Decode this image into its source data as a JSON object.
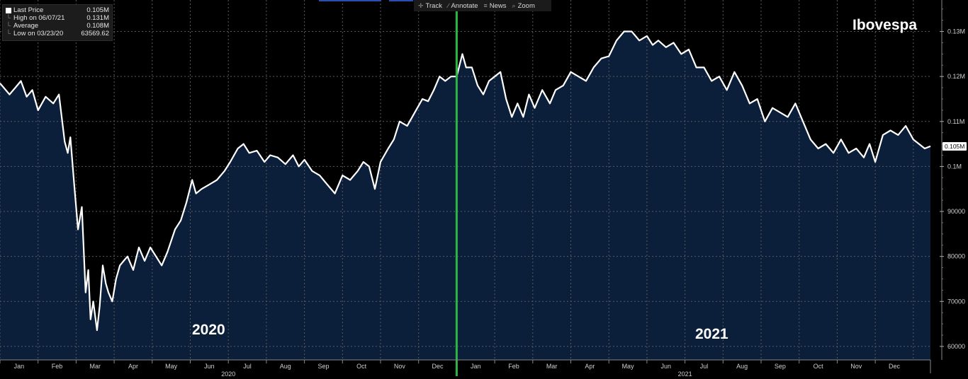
{
  "legend": {
    "rows": [
      {
        "label": "Last Price",
        "value": "0.105M",
        "marker": "swatch"
      },
      {
        "label": "High on 06/07/21",
        "value": "0.131M",
        "marker": "tree"
      },
      {
        "label": "Average",
        "value": "0.108M",
        "marker": "tree"
      },
      {
        "label": "Low on 03/23/20",
        "value": "63569.62",
        "marker": "tree"
      }
    ]
  },
  "toolbar": {
    "items": [
      {
        "label": "Track",
        "icon": "crosshair-icon"
      },
      {
        "label": "Annotate",
        "icon": "pencil-icon"
      },
      {
        "label": "News",
        "icon": "news-icon"
      },
      {
        "label": "Zoom",
        "icon": "magnifier-icon"
      }
    ]
  },
  "price_tag": "0.105M",
  "colors": {
    "background": "#000000",
    "area_fill": "#0b1f3a",
    "line": "#ffffff",
    "divider": "#2bb543",
    "grid": "#5a5a5a"
  },
  "chart_data": {
    "type": "area",
    "title": "Ibovespa",
    "annotations": [
      "2020",
      "2021"
    ],
    "x_unit": "month (0 = start of Jan 2020)",
    "xlim": [
      0,
      24.45
    ],
    "ylim": [
      57000,
      137000
    ],
    "y_ticks": [
      {
        "value": 60000,
        "label": "60000"
      },
      {
        "value": 70000,
        "label": "70000"
      },
      {
        "value": 80000,
        "label": "80000"
      },
      {
        "value": 90000,
        "label": "90000"
      },
      {
        "value": 100000,
        "label": "0.1M"
      },
      {
        "value": 110000,
        "label": "0.11M"
      },
      {
        "value": 120000,
        "label": "0.12M"
      },
      {
        "value": 130000,
        "label": "0.13M"
      }
    ],
    "x_ticks": [
      "Jan",
      "Feb",
      "Mar",
      "Apr",
      "May",
      "Jun",
      "Jul",
      "Aug",
      "Sep",
      "Oct",
      "Nov",
      "Dec",
      "Jan",
      "Feb",
      "Mar",
      "Apr",
      "May",
      "Jun",
      "Jul",
      "Aug",
      "Sep",
      "Oct",
      "Nov",
      "Dec"
    ],
    "year_labels": [
      "2020",
      "2021"
    ],
    "divider_x": 12.0,
    "grid": true,
    "series": [
      {
        "x": [
          0.0,
          0.25,
          0.4,
          0.55,
          0.7,
          0.85,
          1.0,
          1.2,
          1.4,
          1.55,
          1.7,
          1.78,
          1.85,
          1.95,
          2.05,
          2.15,
          2.25,
          2.32,
          2.38,
          2.45,
          2.55,
          2.62,
          2.7,
          2.78,
          2.85,
          2.95,
          3.05,
          3.15,
          3.25,
          3.35,
          3.5,
          3.65,
          3.8,
          3.95,
          4.1,
          4.25,
          4.4,
          4.6,
          4.75,
          4.9,
          5.05,
          5.15,
          5.3,
          5.5,
          5.7,
          5.9,
          6.05,
          6.25,
          6.4,
          6.55,
          6.75,
          6.95,
          7.1,
          7.3,
          7.5,
          7.7,
          7.85,
          8.0,
          8.2,
          8.4,
          8.6,
          8.8,
          9.0,
          9.2,
          9.4,
          9.55,
          9.7,
          9.85,
          10.0,
          10.2,
          10.35,
          10.5,
          10.7,
          10.9,
          11.1,
          11.25,
          11.4,
          11.55,
          11.7,
          11.85,
          12.0,
          12.15,
          12.25,
          12.4,
          12.55,
          12.7,
          12.85,
          13.0,
          13.15,
          13.3,
          13.45,
          13.6,
          13.75,
          13.9,
          14.05,
          14.25,
          14.45,
          14.6,
          14.8,
          15.0,
          15.2,
          15.4,
          15.6,
          15.8,
          16.0,
          16.2,
          16.4,
          16.6,
          16.8,
          17.0,
          17.15,
          17.3,
          17.5,
          17.7,
          17.9,
          18.1,
          18.3,
          18.5,
          18.7,
          18.9,
          19.1,
          19.3,
          19.5,
          19.7,
          19.9,
          20.1,
          20.3,
          20.5,
          20.7,
          20.9,
          21.1,
          21.3,
          21.5,
          21.7,
          21.9,
          22.1,
          22.3,
          22.5,
          22.7,
          22.85,
          23.0,
          23.2,
          23.4,
          23.6,
          23.8,
          24.0,
          24.15,
          24.3,
          24.45
        ],
        "y": [
          118500,
          116000,
          117500,
          119000,
          115500,
          117000,
          112500,
          115500,
          114000,
          116000,
          105500,
          103000,
          106500,
          96000,
          86000,
          91000,
          72000,
          77000,
          66000,
          70000,
          63600,
          69000,
          78000,
          74000,
          72000,
          70000,
          75000,
          78000,
          79000,
          80000,
          77000,
          82000,
          79000,
          82000,
          80000,
          78000,
          81000,
          86000,
          88000,
          92000,
          97000,
          94000,
          95000,
          96000,
          97000,
          99000,
          101000,
          104000,
          105000,
          103000,
          103500,
          101000,
          102500,
          102000,
          100500,
          102500,
          100000,
          101500,
          99000,
          98000,
          96000,
          94000,
          98000,
          97000,
          99000,
          101000,
          100000,
          95000,
          101000,
          104000,
          106000,
          110000,
          109000,
          112000,
          115000,
          114500,
          117000,
          120000,
          119000,
          120000,
          120000,
          125000,
          122000,
          122000,
          118000,
          116000,
          119000,
          120000,
          121000,
          115000,
          111000,
          114000,
          111000,
          116000,
          113000,
          117000,
          114000,
          117000,
          118000,
          121000,
          120000,
          119000,
          122000,
          124000,
          124500,
          128000,
          130000,
          130000,
          128000,
          129000,
          127000,
          128000,
          126500,
          127500,
          125000,
          126000,
          122000,
          122000,
          119000,
          120000,
          117000,
          121000,
          118000,
          114000,
          115000,
          110000,
          113000,
          112000,
          111000,
          114000,
          110000,
          106000,
          104000,
          105000,
          103000,
          106000,
          103000,
          104000,
          102000,
          105000,
          101000,
          107000,
          108000,
          107000,
          109000,
          106000,
          105000,
          104000,
          104500
        ]
      }
    ]
  }
}
